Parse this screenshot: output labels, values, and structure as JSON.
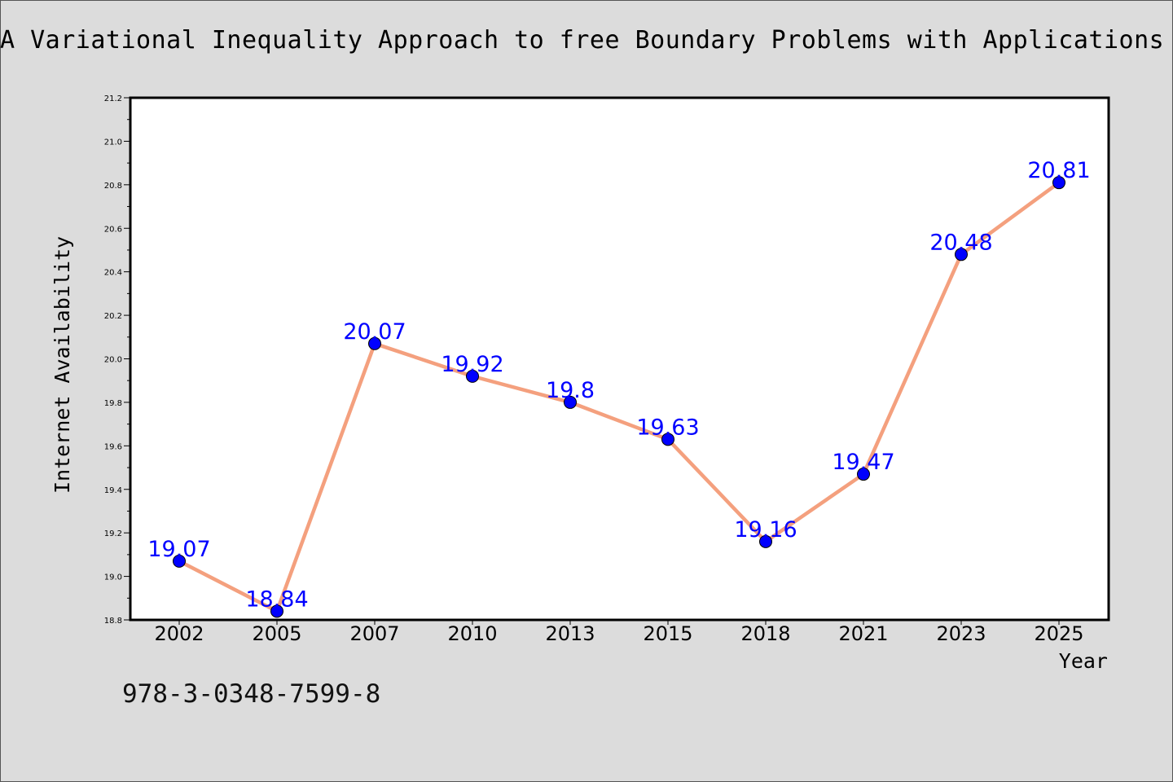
{
  "header": {
    "title": "A Variational Inequality Approach to free Boundary Problems with Applications in"
  },
  "footer": {
    "isbn": "978-3-0348-7599-8"
  },
  "chart_data": {
    "type": "line",
    "title": "A Variational Inequality Approach to free Boundary Problems with Applications in",
    "xlabel": "Year",
    "ylabel": "Internet Availability",
    "categories": [
      "2002",
      "2005",
      "2007",
      "2010",
      "2013",
      "2015",
      "2018",
      "2021",
      "2023",
      "2025"
    ],
    "series": [
      {
        "values": [
          19.07,
          18.84,
          20.07,
          19.92,
          19.8,
          19.63,
          19.16,
          19.47,
          20.48,
          20.81
        ],
        "data_labels": [
          "19.07",
          "18.84",
          "20.07",
          "19.92",
          "19.8",
          "19.63",
          "19.16",
          "19.47",
          "20.48",
          "20.81"
        ]
      }
    ],
    "ylim": [
      18.8,
      21.2
    ],
    "yticks": [
      18.8,
      19.0,
      19.2,
      19.4,
      19.6,
      19.8,
      20.0,
      20.2,
      20.4,
      20.6,
      20.8,
      21.0,
      21.2
    ],
    "ytick_labels": [
      "18.8",
      "19.0",
      "19.2",
      "19.4",
      "19.6",
      "19.8",
      "20.0",
      "20.2",
      "20.4",
      "20.6",
      "20.8",
      "21.0",
      "21.2"
    ],
    "grid": false,
    "legend": "none",
    "colors": {
      "line": "#f4a07e",
      "marker": "#0000ff",
      "marker_edge": "#000000",
      "data_label": "#0000ff",
      "axes_background": "#ffffff",
      "figure_background": "#dcdcdc"
    }
  }
}
